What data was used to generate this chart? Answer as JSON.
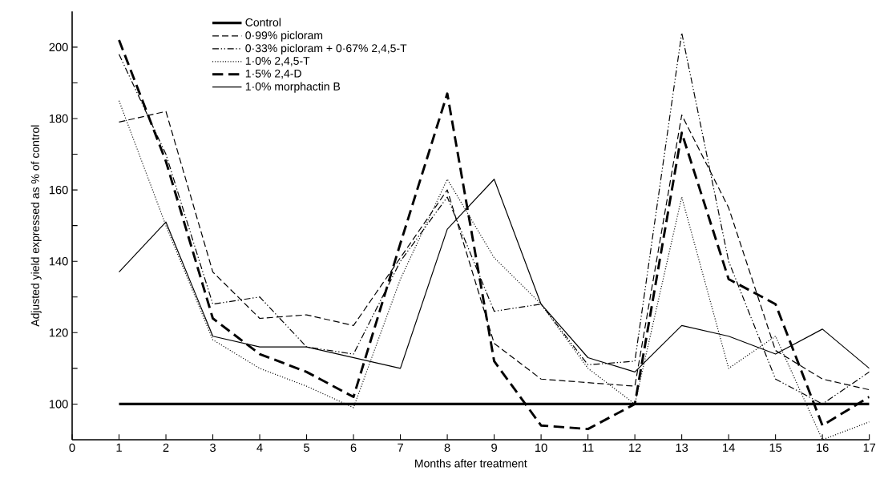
{
  "chart_data": {
    "type": "line",
    "xlabel": "Months after treatment",
    "ylabel": "Adjusted yield expressed as % of control",
    "x": [
      1,
      2,
      3,
      4,
      5,
      6,
      7,
      8,
      9,
      10,
      11,
      12,
      13,
      14,
      15,
      16,
      17
    ],
    "series": [
      {
        "name": "Control",
        "color": "#000000",
        "line_style": "solid",
        "values": [
          100,
          100,
          100,
          100,
          100,
          100,
          100,
          100,
          100,
          100,
          100,
          100,
          100,
          100,
          100,
          100,
          100
        ]
      },
      {
        "name": "0·99% picloram",
        "color": "#000000",
        "line_style": "dashed",
        "values": [
          179,
          182,
          137,
          124,
          125,
          122,
          141,
          160,
          117,
          107,
          106,
          105,
          181,
          155,
          115,
          107,
          104
        ]
      },
      {
        "name": "0·33% picloram + 0·67% 2,4,5-T",
        "color": "#000000",
        "line_style": "dashdotdotted",
        "values": [
          198,
          170,
          128,
          130,
          116,
          114,
          140,
          158,
          126,
          128,
          111,
          112,
          204,
          140,
          107,
          100,
          109
        ]
      },
      {
        "name": "1·0% 2,4,5-T",
        "color": "#000000",
        "line_style": "dotted",
        "values": [
          185,
          150,
          118,
          110,
          105,
          99,
          135,
          163,
          141,
          128,
          110,
          100,
          158,
          110,
          119,
          90,
          95
        ]
      },
      {
        "name": "1·5% 2,4-D",
        "color": "#000000",
        "line_style": "longdash",
        "values": [
          202,
          168,
          124,
          114,
          109,
          102,
          145,
          187,
          112,
          94,
          93,
          100,
          176,
          135,
          128,
          94,
          102
        ]
      },
      {
        "name": "1·0% morphactin B",
        "color": "#000000",
        "line_style": "solid",
        "values": [
          137,
          151,
          119,
          116,
          116,
          113,
          110,
          149,
          163,
          128,
          113,
          109,
          122,
          119,
          114,
          121,
          110
        ]
      }
    ],
    "xlim": [
      0,
      17
    ],
    "ylim": [
      90,
      210
    ],
    "xticks": [
      0,
      1,
      2,
      3,
      4,
      5,
      6,
      7,
      8,
      9,
      10,
      11,
      12,
      13,
      14,
      15,
      16,
      17
    ],
    "yticks": [
      100,
      {
        "value": 110,
        "label": null
      },
      120,
      {
        "value": 130,
        "label": null
      },
      140,
      {
        "value": 150,
        "label": null
      },
      160,
      {
        "value": 170,
        "label": null
      },
      180,
      {
        "value": 190,
        "label": null
      },
      200
    ],
    "legend": "top left",
    "grid": false,
    "marker": "none"
  }
}
